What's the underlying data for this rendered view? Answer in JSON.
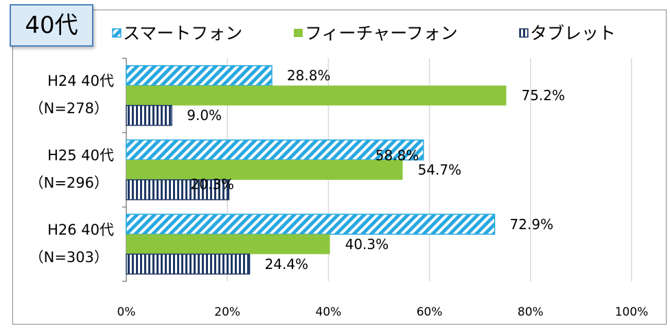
{
  "badge": {
    "label": "40代"
  },
  "chart_data": {
    "type": "bar",
    "orientation": "horizontal",
    "categories": [
      [
        "H24 40代",
        "（N=278）"
      ],
      [
        "H25 40代",
        "（N=296）"
      ],
      [
        "H26 40代",
        "（N=303）"
      ]
    ],
    "series": [
      {
        "name": "スマートフォン",
        "values": [
          28.8,
          58.8,
          72.9
        ],
        "labels": [
          "28.8%",
          "58.8%",
          "72.9%"
        ],
        "color": "#29a8e0",
        "pattern": "diagonal-stripes"
      },
      {
        "name": "フィーチャーフォン",
        "values": [
          75.2,
          54.7,
          40.3
        ],
        "labels": [
          "75.2%",
          "54.7%",
          "40.3%"
        ],
        "color": "#8cc63e",
        "pattern": "solid"
      },
      {
        "name": "タブレット",
        "values": [
          9.0,
          20.3,
          24.4
        ],
        "labels": [
          "9.0%",
          "20.3%",
          "24.4%"
        ],
        "color": "#1f3864",
        "pattern": "vertical-stripes"
      }
    ],
    "xlim": [
      0,
      100
    ],
    "x_ticks": [
      "0%",
      "20%",
      "40%",
      "60%",
      "80%",
      "100%"
    ],
    "grid": true,
    "legend_position": "top"
  }
}
